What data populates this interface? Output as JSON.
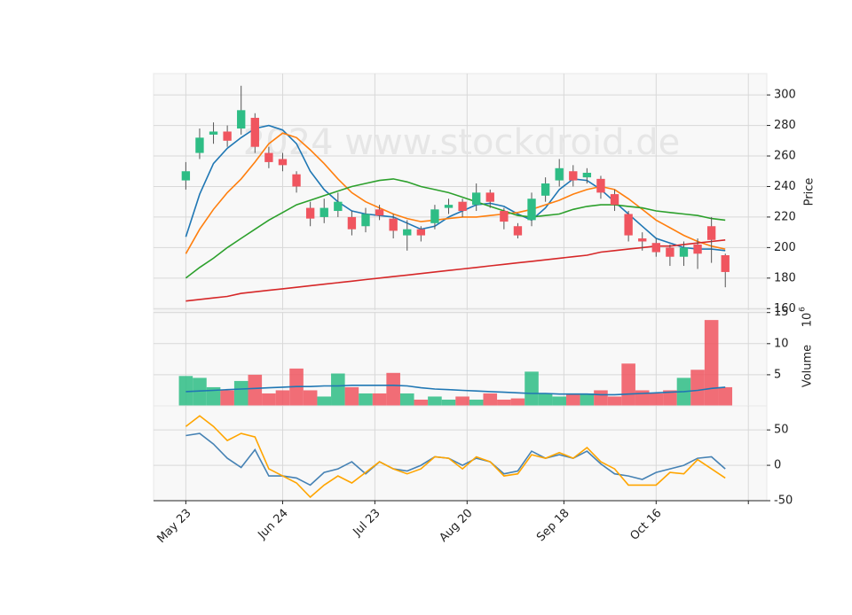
{
  "chart_data": [
    {
      "type": "candlestick",
      "ylabel": "Price",
      "watermark": "2024 www.stockdroid.de",
      "x": [
        0,
        3,
        6,
        9,
        12,
        15,
        18,
        21,
        24,
        27,
        30,
        33,
        36,
        39,
        42,
        45,
        48,
        51,
        54,
        57,
        60,
        63,
        66,
        69,
        72,
        75,
        78,
        81,
        84,
        87,
        90,
        93,
        96,
        99,
        102,
        105,
        108,
        111,
        114,
        117
      ],
      "open": [
        244,
        262,
        274,
        276,
        278,
        285,
        262,
        258,
        248,
        226,
        220,
        224,
        220,
        214,
        225,
        219,
        208,
        212,
        216,
        226,
        230,
        228,
        236,
        224,
        214,
        218,
        234,
        244,
        250,
        246,
        245,
        235,
        222,
        206,
        203,
        200,
        194,
        202,
        214,
        195
      ],
      "high": [
        256,
        278,
        282,
        280,
        306,
        288,
        266,
        262,
        250,
        230,
        232,
        236,
        224,
        226,
        228,
        222,
        218,
        214,
        228,
        232,
        232,
        242,
        238,
        226,
        216,
        236,
        246,
        258,
        254,
        252,
        247,
        238,
        224,
        210,
        206,
        202,
        204,
        206,
        220,
        196
      ],
      "low": [
        238,
        258,
        268,
        266,
        274,
        262,
        252,
        250,
        236,
        214,
        216,
        220,
        208,
        210,
        218,
        206,
        198,
        204,
        212,
        222,
        220,
        224,
        226,
        212,
        206,
        214,
        230,
        240,
        240,
        242,
        232,
        224,
        204,
        198,
        194,
        188,
        188,
        186,
        190,
        174
      ],
      "close": [
        250,
        272,
        276,
        270,
        290,
        266,
        256,
        254,
        240,
        219,
        226,
        230,
        212,
        222,
        221,
        211,
        212,
        208,
        225,
        228,
        224,
        236,
        230,
        217,
        208,
        232,
        242,
        252,
        244,
        249,
        236,
        228,
        208,
        204,
        197,
        194,
        200,
        196,
        205,
        184
      ],
      "up_color": "#2ebd85",
      "down_color": "#f0555f",
      "series": [
        {
          "color": "#1f77b4",
          "values": [
            207,
            235,
            255,
            265,
            272,
            278,
            280,
            277,
            268,
            250,
            238,
            230,
            224,
            222,
            221,
            220,
            216,
            212,
            214,
            220,
            224,
            228,
            229,
            227,
            222,
            218,
            226,
            238,
            245,
            244,
            238,
            230,
            222,
            214,
            206,
            203,
            200,
            199,
            199,
            198
          ]
        },
        {
          "color": "#ff7f0e",
          "values": [
            196,
            212,
            225,
            236,
            245,
            256,
            268,
            275,
            272,
            264,
            255,
            245,
            236,
            230,
            226,
            222,
            219,
            217,
            218,
            219,
            220,
            220,
            221,
            222,
            223,
            225,
            228,
            231,
            235,
            238,
            240,
            238,
            232,
            225,
            218,
            213,
            208,
            204,
            201,
            199
          ]
        },
        {
          "color": "#2ca02c",
          "values": [
            180,
            187,
            193,
            200,
            206,
            212,
            218,
            223,
            228,
            231,
            234,
            237,
            240,
            242,
            244,
            245,
            243,
            240,
            238,
            236,
            233,
            230,
            227,
            224,
            221,
            220,
            221,
            222,
            225,
            227,
            228,
            228,
            227,
            226,
            224,
            223,
            222,
            221,
            219,
            218
          ]
        },
        {
          "color": "#d62728",
          "values": [
            165,
            166,
            167,
            168,
            170,
            171,
            172,
            173,
            174,
            175,
            176,
            177,
            178,
            179,
            180,
            181,
            182,
            183,
            184,
            185,
            186,
            187,
            188,
            189,
            190,
            191,
            192,
            193,
            194,
            195,
            197,
            198,
            199,
            200,
            201,
            201,
            202,
            203,
            204,
            205
          ]
        }
      ],
      "xlim": [
        -7,
        126
      ],
      "ylim": [
        159,
        314
      ],
      "yticks": [
        160,
        180,
        200,
        220,
        240,
        260,
        280,
        300
      ],
      "grid": true
    },
    {
      "type": "bar",
      "ylabel": "Volume",
      "yexponent": "10",
      "yexponent_power": "6",
      "x": [
        0,
        3,
        6,
        9,
        12,
        15,
        18,
        21,
        24,
        27,
        30,
        33,
        36,
        39,
        42,
        45,
        48,
        51,
        54,
        57,
        60,
        63,
        66,
        69,
        72,
        75,
        78,
        81,
        84,
        87,
        90,
        93,
        96,
        99,
        102,
        105,
        108,
        111,
        114,
        117
      ],
      "values": [
        4.8,
        4.5,
        3,
        2.5,
        4,
        5,
        2,
        2.5,
        6,
        2.5,
        1.5,
        5.2,
        3,
        2,
        2,
        5.3,
        2,
        1,
        1.5,
        1,
        1.5,
        1,
        2,
        1,
        1.2,
        5.5,
        2,
        1.5,
        2,
        2,
        2.5,
        1.5,
        6.8,
        2.5,
        2,
        2.5,
        4.5,
        5.8,
        13.8,
        3
      ],
      "series": [
        {
          "color": "#1f77b4",
          "values": [
            2.3,
            2.4,
            2.5,
            2.6,
            2.7,
            2.8,
            2.9,
            3.0,
            3.1,
            3.1,
            3.2,
            3.2,
            3.3,
            3.3,
            3.3,
            3.3,
            3.2,
            2.9,
            2.7,
            2.6,
            2.5,
            2.4,
            2.3,
            2.2,
            2.1,
            2.0,
            2.0,
            1.9,
            1.9,
            1.9,
            1.8,
            1.8,
            1.9,
            2.0,
            2.1,
            2.2,
            2.3,
            2.5,
            2.8,
            3.0
          ]
        }
      ],
      "xlim": [
        -7,
        126
      ],
      "ylim": [
        0,
        15.1
      ],
      "yticks": [
        5,
        10,
        15
      ],
      "grid": true
    },
    {
      "type": "line",
      "x": [
        0,
        3,
        6,
        9,
        12,
        15,
        18,
        21,
        24,
        27,
        30,
        33,
        36,
        39,
        42,
        45,
        48,
        51,
        54,
        57,
        60,
        63,
        66,
        69,
        72,
        75,
        78,
        81,
        84,
        87,
        90,
        93,
        96,
        99,
        102,
        105,
        108,
        111,
        114,
        117
      ],
      "series": [
        {
          "color": "#4682b4",
          "values": [
            42,
            45,
            30,
            10,
            -3,
            22,
            -15,
            -15,
            -18,
            -28,
            -10,
            -5,
            5,
            -12,
            5,
            -5,
            -8,
            0,
            12,
            10,
            0,
            10,
            5,
            -12,
            -8,
            20,
            10,
            15,
            10,
            20,
            2,
            -12,
            -15,
            -20,
            -10,
            -5,
            0,
            10,
            12,
            -5
          ]
        },
        {
          "color": "#ffa500",
          "values": [
            55,
            70,
            55,
            35,
            45,
            40,
            -5,
            -15,
            -25,
            -45,
            -28,
            -15,
            -25,
            -10,
            5,
            -5,
            -12,
            -5,
            12,
            10,
            -5,
            12,
            5,
            -15,
            -12,
            15,
            10,
            18,
            10,
            25,
            5,
            -5,
            -28,
            -28,
            -28,
            -10,
            -12,
            8,
            -5,
            -18
          ]
        }
      ],
      "xlim": [
        -7,
        126
      ],
      "ylim": [
        -50,
        84
      ],
      "yticks": [
        -50,
        0,
        50
      ],
      "grid": true,
      "xticks": [
        {
          "value": 0,
          "label": "May 23"
        },
        {
          "value": 21,
          "label": "Jun 24"
        },
        {
          "value": 41,
          "label": "Jul 23"
        },
        {
          "value": 61,
          "label": "Aug 20"
        },
        {
          "value": 82,
          "label": "Sep 18"
        },
        {
          "value": 102,
          "label": "Oct 16"
        },
        {
          "value": 122,
          "label": null
        }
      ]
    }
  ]
}
